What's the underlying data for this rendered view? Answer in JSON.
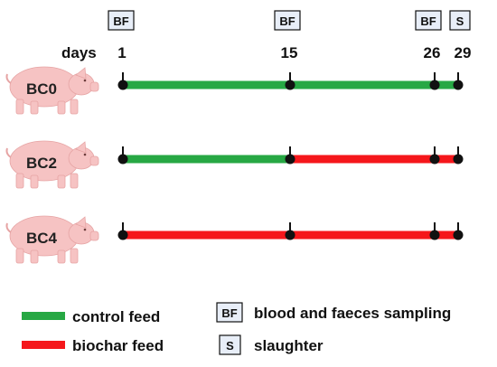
{
  "timeline": {
    "days_label": "days",
    "days": [
      {
        "value": 1,
        "label": "1",
        "marker": "BF"
      },
      {
        "value": 15,
        "label": "15",
        "marker": "BF"
      },
      {
        "value": 26,
        "label": "26",
        "marker": "BF"
      },
      {
        "value": 29,
        "label": "29",
        "marker": "S"
      }
    ]
  },
  "groups": [
    {
      "name": "BC0",
      "segments": [
        {
          "from": 1,
          "to": 15,
          "feed": "control"
        },
        {
          "from": 15,
          "to": 26,
          "feed": "control"
        },
        {
          "from": 26,
          "to": 29,
          "feed": "control"
        }
      ]
    },
    {
      "name": "BC2",
      "segments": [
        {
          "from": 1,
          "to": 15,
          "feed": "control"
        },
        {
          "from": 15,
          "to": 26,
          "feed": "biochar"
        },
        {
          "from": 26,
          "to": 29,
          "feed": "biochar"
        }
      ]
    },
    {
      "name": "BC4",
      "segments": [
        {
          "from": 1,
          "to": 15,
          "feed": "biochar"
        },
        {
          "from": 15,
          "to": 26,
          "feed": "biochar"
        },
        {
          "from": 26,
          "to": 29,
          "feed": "biochar"
        }
      ]
    }
  ],
  "legend": {
    "control_feed": "control feed",
    "biochar_feed": "biochar feed",
    "bf_box": "BF",
    "bf_text": "blood and faeces sampling",
    "s_box": "S",
    "s_text": "slaughter"
  },
  "colors": {
    "control": "#27a844",
    "biochar": "#f5171b",
    "pig": "#f6c3c3",
    "pig_edge": "#e6a4a4",
    "box_fill": "#e8eef8",
    "ink": "#111111"
  }
}
